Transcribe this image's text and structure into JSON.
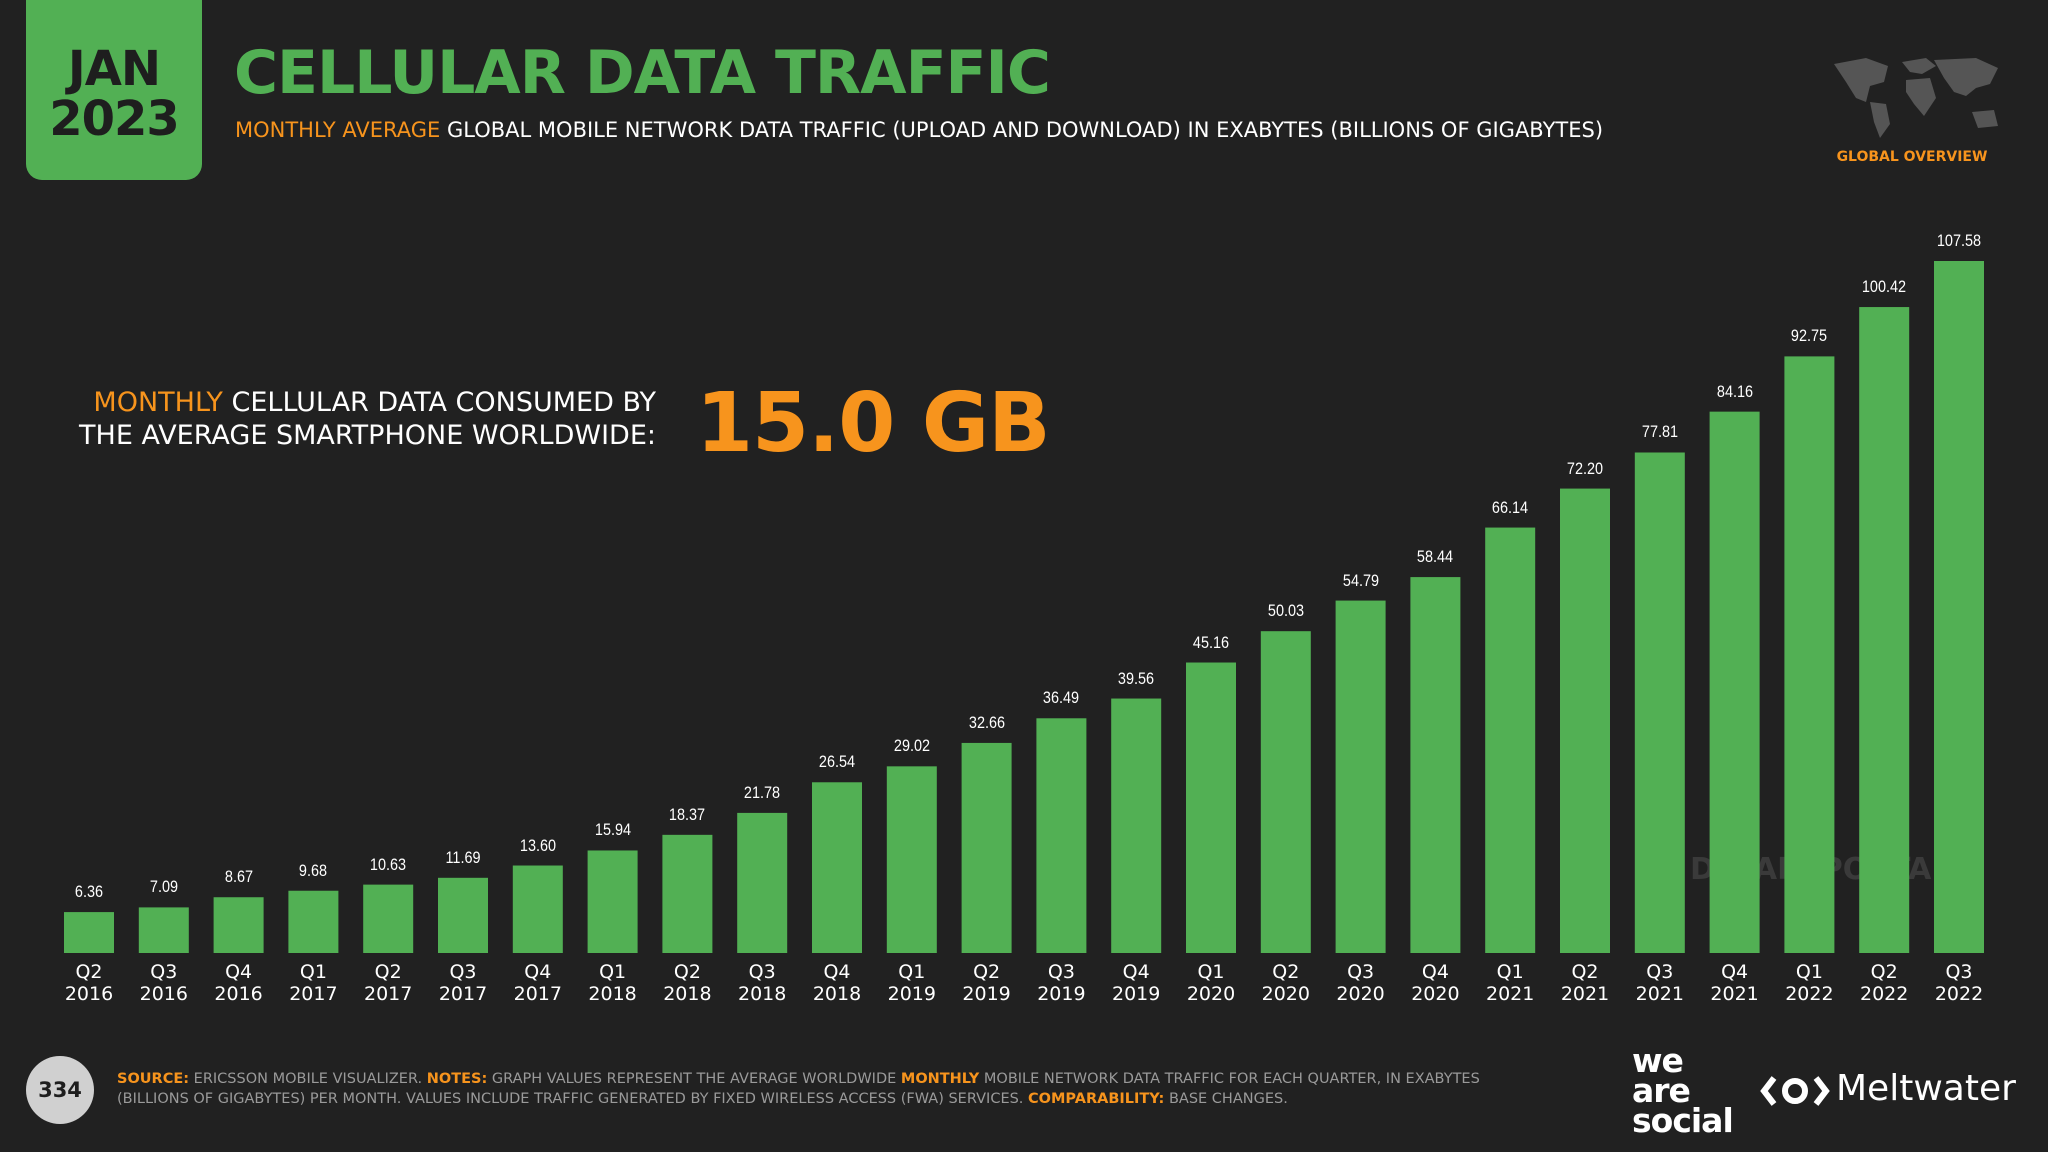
{
  "header": {
    "month": "JAN",
    "year": "2023",
    "title": "CELLULAR DATA TRAFFIC",
    "subtitle_highlight": "MONTHLY AVERAGE",
    "subtitle": "GLOBAL MOBILE NETWORK DATA TRAFFIC (UPLOAD AND DOWNLOAD) IN EXABYTES (BILLIONS OF GIGABYTES)",
    "section": "GLOBAL OVERVIEW"
  },
  "callout": {
    "highlight": "MONTHLY",
    "line1": "CELLULAR DATA CONSUMED BY",
    "line2": "THE AVERAGE SMARTPHONE WORLDWIDE:",
    "value": "15.0 GB"
  },
  "chart_data": {
    "type": "bar",
    "color": "#52b054",
    "categories": [
      "Q2 2016",
      "Q3 2016",
      "Q4 2016",
      "Q1 2017",
      "Q2 2017",
      "Q3 2017",
      "Q4 2017",
      "Q1 2018",
      "Q2 2018",
      "Q3 2018",
      "Q4 2018",
      "Q1 2019",
      "Q2 2019",
      "Q3 2019",
      "Q4 2019",
      "Q1 2020",
      "Q2 2020",
      "Q3 2020",
      "Q4 2020",
      "Q1 2021",
      "Q2 2021",
      "Q3 2021",
      "Q4 2021",
      "Q1 2022",
      "Q2 2022",
      "Q3 2022"
    ],
    "values": [
      6.36,
      7.09,
      8.67,
      9.68,
      10.63,
      11.69,
      13.6,
      15.94,
      18.37,
      21.78,
      26.54,
      29.02,
      32.66,
      36.49,
      39.56,
      45.16,
      50.03,
      54.79,
      58.44,
      66.14,
      72.2,
      77.81,
      84.16,
      92.75,
      100.42,
      107.58
    ],
    "value_labels": [
      "6.36",
      "7.09",
      "8.67",
      "9.68",
      "10.63",
      "11.69",
      "13.60",
      "15.94",
      "18.37",
      "21.78",
      "26.54",
      "29.02",
      "32.66",
      "36.49",
      "39.56",
      "45.16",
      "50.03",
      "54.79",
      "58.44",
      "66.14",
      "72.20",
      "77.81",
      "84.16",
      "92.75",
      "100.42",
      "107.58"
    ]
  },
  "watermark": "DATAREPORTAL",
  "footer": {
    "page": "334",
    "source_label": "SOURCE:",
    "source": "ERICSSON MOBILE VISUALIZER.",
    "notes_label": "NOTES:",
    "notes_1": "GRAPH VALUES REPRESENT THE AVERAGE WORLDWIDE",
    "notes_highlight": "MONTHLY",
    "notes_2": "MOBILE NETWORK DATA TRAFFIC FOR EACH QUARTER, IN EXABYTES (BILLIONS OF GIGABYTES) PER MONTH. VALUES INCLUDE TRAFFIC GENERATED BY FIXED WIRELESS ACCESS (FWA) SERVICES.",
    "comparability_label": "COMPARABILITY:",
    "comparability": "BASE CHANGES."
  },
  "logos": {
    "we": "we",
    "are": "are",
    "social": "social",
    "meltwater": "Meltwater"
  }
}
